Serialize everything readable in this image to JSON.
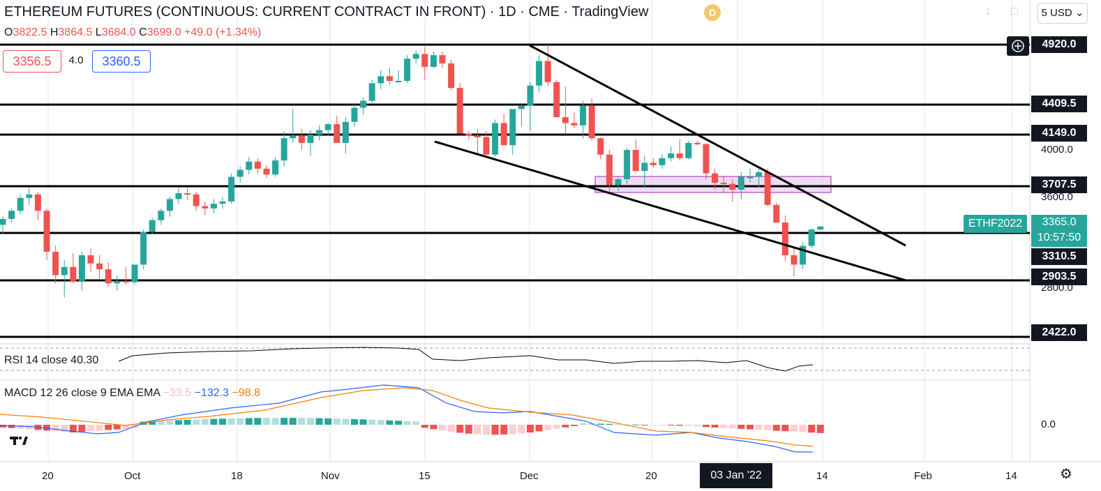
{
  "header": {
    "title": "ETHEREUM FUTURES (CONTINUOUS: CURRENT CONTRACT IN FRONT) · 1D · CME · TradingView",
    "badge": "D",
    "ohlc": {
      "o_label": "O",
      "o": "3822.5",
      "h_label": "H",
      "h": "3864.5",
      "l_label": "L",
      "l": "3684.0",
      "c_label": "C",
      "c": "3699.0",
      "change": "+49.0 (+1.34%)"
    },
    "currency": "5 USD"
  },
  "trade": {
    "sell": "3356.5",
    "spread": "4.0",
    "buy": "3360.5"
  },
  "colors": {
    "up": "#26a69a",
    "down": "#ef5350",
    "macd": "#2962ff",
    "signal": "#f57c00",
    "zone": "#9c27b0"
  },
  "price_axis": {
    "levels": [
      {
        "label": "4920.0",
        "price": 4920.0
      },
      {
        "label": "4409.5",
        "price": 4409.5
      },
      {
        "label": "4149.0",
        "price": 4149.0
      },
      {
        "label": "3707.5",
        "price": 3707.5
      },
      {
        "label": "3310.5",
        "price": 3310.5
      },
      {
        "label": "2903.5",
        "price": 2903.5
      },
      {
        "label": "2422.0",
        "price": 2422.0
      }
    ],
    "ticks": [
      {
        "label": "4000.0",
        "price": 4000.0
      },
      {
        "label": "3600.0",
        "price": 3600.0
      },
      {
        "label": "2800.0",
        "price": 2800.0
      }
    ],
    "symbol": "ETHF2022",
    "current_price": "3365.0",
    "countdown": "10:57:50"
  },
  "indicators": {
    "rsi": {
      "label": "RSI 14 close",
      "value": "40.30"
    },
    "macd": {
      "label": "MACD 12 26 close 9 EMA EMA",
      "hist": "−33.5",
      "macd": "−132.3",
      "signal": "−98.8",
      "zero": "0.0"
    }
  },
  "time_axis": [
    "20",
    "Oct",
    "18",
    "Nov",
    "15",
    "Dec",
    "20",
    "14",
    "Feb",
    "14"
  ],
  "time_highlight": "03 Jan '22"
}
